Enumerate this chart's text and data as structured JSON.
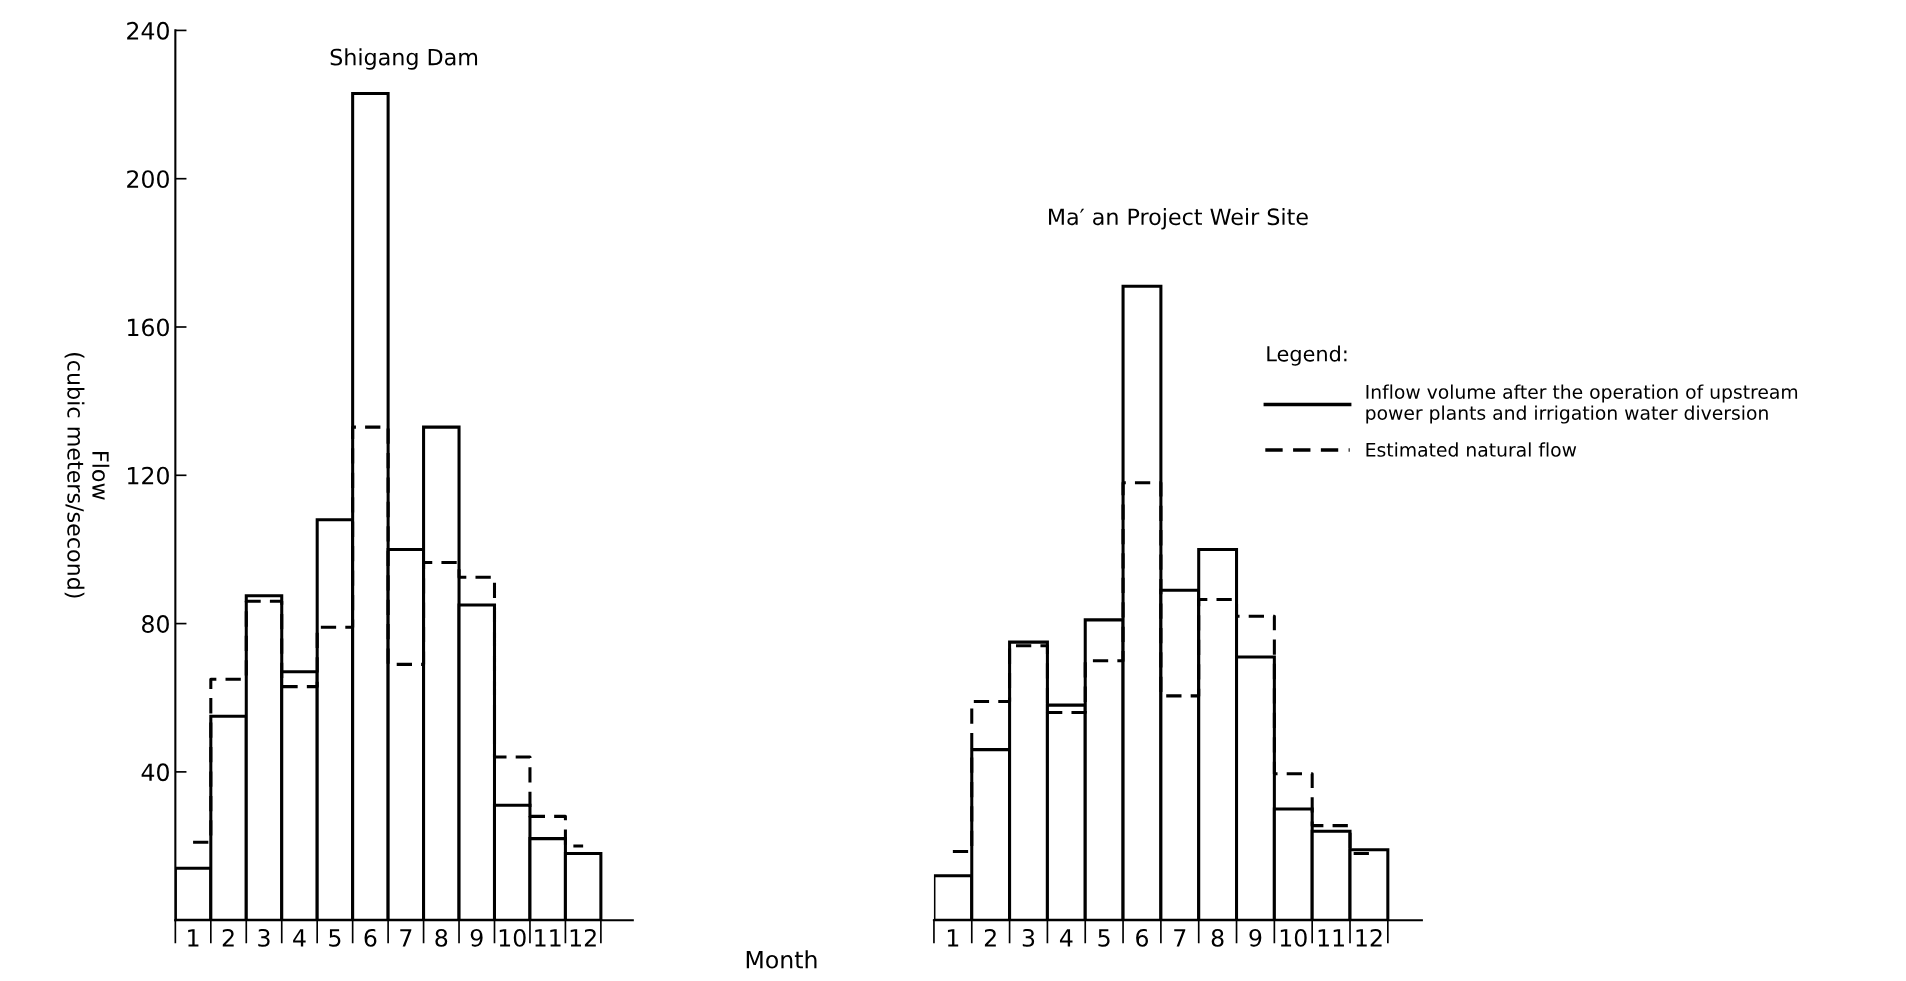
{
  "chart_data": [
    {
      "type": "bar",
      "title": "Shigang Dam",
      "xlabel": "Month",
      "ylabel": "Flow\n(cubic meters/second)",
      "categories": [
        "1",
        "2",
        "3",
        "4",
        "5",
        "6",
        "7",
        "8",
        "9",
        "10",
        "11",
        "12"
      ],
      "series": [
        {
          "name": "Inflow volume after the operation of upstream\npower plants and irrigation water diversion",
          "color": "#000000",
          "line_style": "solid",
          "values": [
            14,
            55,
            87.5,
            67,
            108,
            223,
            100,
            133,
            85,
            31,
            22,
            18
          ]
        },
        {
          "name": "Estimated natural flow",
          "type": "step",
          "color": "#000000",
          "line_style": "dashed",
          "values": [
            21,
            65,
            86,
            63,
            79,
            133,
            69,
            96.5,
            92.5,
            44,
            28,
            20
          ]
        }
      ],
      "ylim": [
        0,
        240
      ],
      "yticks": [
        {
          "value": 0,
          "label": null
        },
        40,
        80,
        120,
        160,
        200,
        240
      ],
      "grid": false,
      "legend": "right",
      "legend_title": "Legend:"
    },
    {
      "type": "bar",
      "title": "Ma′ an Project Weir Site",
      "categories": [
        "1",
        "2",
        "3",
        "4",
        "5",
        "6",
        "7",
        "8",
        "9",
        "10",
        "11",
        "12"
      ],
      "series": [
        {
          "color": "#000000",
          "line_style": "solid",
          "values": [
            12,
            46,
            75,
            58,
            81,
            171,
            89,
            100,
            71,
            30,
            24,
            19
          ]
        },
        {
          "type": "step",
          "color": "#000000",
          "line_style": "dashed",
          "values": [
            18.5,
            59,
            74,
            56,
            70,
            118,
            60.5,
            86.5,
            82,
            39.5,
            25.5,
            18
          ]
        }
      ],
      "ylim": [
        0,
        240
      ],
      "yticks": [
        {
          "value": 0,
          "label": null
        },
        40,
        80,
        120,
        160,
        200,
        240
      ],
      "tick_labels": "x",
      "grid": false
    }
  ]
}
